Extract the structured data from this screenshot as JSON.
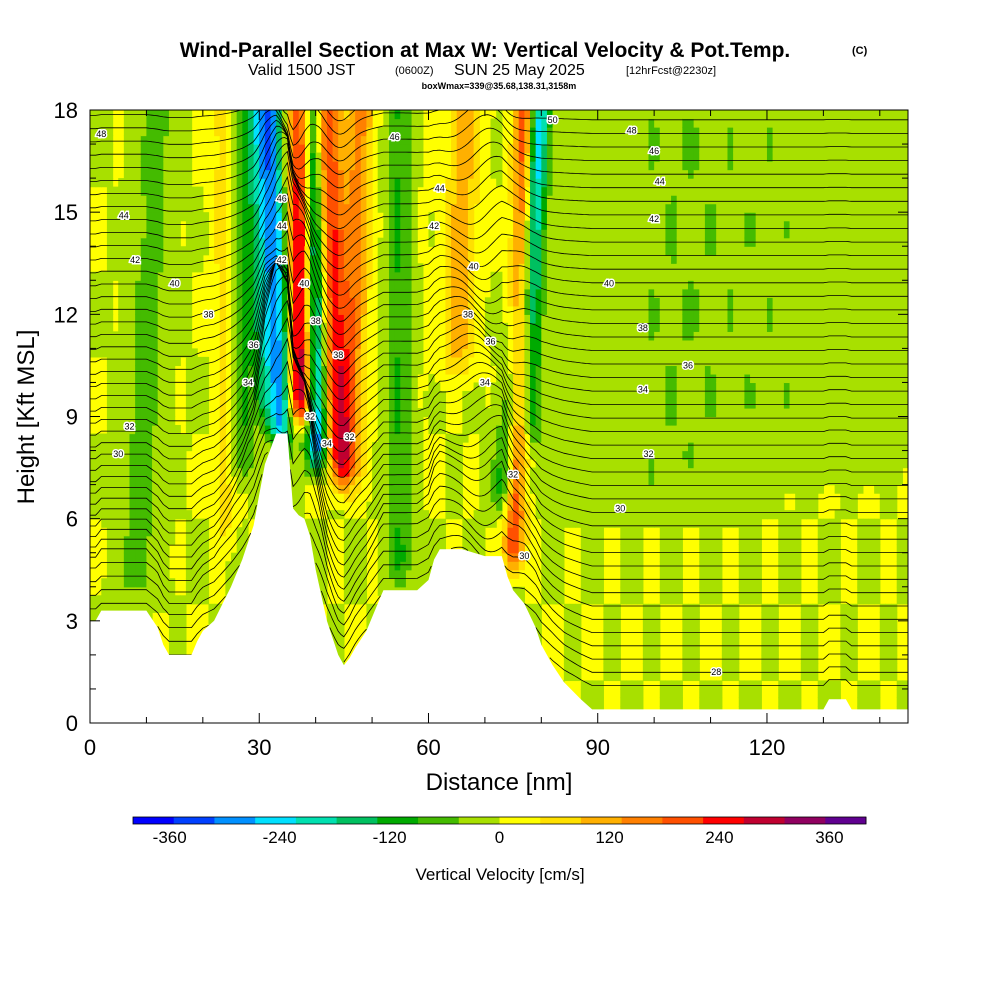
{
  "titles": {
    "main": "Wind-Parallel Section at Max W: Vertical Velocity & Pot.Temp.",
    "copyright": "(C)",
    "valid_a": "Valid 1500 JST",
    "valid_b": "(0600Z)",
    "valid_c": "SUN 25 May 2025",
    "valid_d": "[12hrFcst@2230z]",
    "box": "boxWmax=339@35.68,138.31,3158m"
  },
  "chart_data": {
    "type": "heatmap",
    "xlabel": "Distance [nm]",
    "ylabel": "Height [Kft MSL]",
    "xlim": [
      0,
      145
    ],
    "ylim": [
      0,
      18
    ],
    "x_ticks": [
      0,
      30,
      60,
      90,
      120
    ],
    "y_ticks": [
      0,
      3,
      6,
      9,
      12,
      15,
      18
    ],
    "colorbar": {
      "label": "Vertical Velocity [cm/s]",
      "ticks": [
        -360,
        -240,
        -120,
        0,
        120,
        240,
        360
      ],
      "min": -400,
      "max": 400,
      "colors": [
        "#0000ff",
        "#0040ff",
        "#0090ff",
        "#00e0ff",
        "#00e0b0",
        "#00c060",
        "#00aa00",
        "#44bb00",
        "#a8e000",
        "#ffff00",
        "#ffe000",
        "#ffb000",
        "#ff8000",
        "#ff5000",
        "#ff0000",
        "#c00030",
        "#900060",
        "#600090"
      ]
    },
    "terrain_kft": [
      [
        0,
        3.0
      ],
      [
        1,
        3.0
      ],
      [
        2,
        3.3
      ],
      [
        8,
        3.3
      ],
      [
        10,
        3.3
      ],
      [
        12,
        2.8
      ],
      [
        13,
        2.3
      ],
      [
        14,
        2.0
      ],
      [
        18,
        2.0
      ],
      [
        19,
        2.4
      ],
      [
        20,
        2.7
      ],
      [
        22,
        3.0
      ],
      [
        25,
        4.0
      ],
      [
        27,
        4.8
      ],
      [
        29,
        5.8
      ],
      [
        30,
        6.7
      ],
      [
        31,
        7.6
      ],
      [
        33,
        8.5
      ],
      [
        35,
        8.5
      ],
      [
        36,
        6.3
      ],
      [
        37,
        6.1
      ],
      [
        38,
        6.0
      ],
      [
        39,
        5.5
      ],
      [
        40,
        4.5
      ],
      [
        42,
        3.0
      ],
      [
        44,
        2.0
      ],
      [
        45,
        1.7
      ],
      [
        46,
        1.9
      ],
      [
        47,
        2.2
      ],
      [
        49,
        2.7
      ],
      [
        51,
        3.5
      ],
      [
        52,
        3.9
      ],
      [
        58,
        3.9
      ],
      [
        60,
        4.2
      ],
      [
        61,
        4.8
      ],
      [
        62,
        5.1
      ],
      [
        66,
        5.1
      ],
      [
        70,
        4.9
      ],
      [
        73,
        4.9
      ],
      [
        74,
        4.3
      ],
      [
        75,
        3.9
      ],
      [
        77,
        3.5
      ],
      [
        79,
        2.8
      ],
      [
        80,
        2.3
      ],
      [
        82,
        1.7
      ],
      [
        84,
        1.2
      ],
      [
        87,
        0.7
      ],
      [
        89,
        0.4
      ],
      [
        130,
        0.4
      ],
      [
        131,
        0.7
      ],
      [
        134,
        0.7
      ],
      [
        135,
        0.4
      ],
      [
        145,
        0.4
      ]
    ],
    "updrafts": [
      {
        "x_base": 37.5,
        "x_top": 37.5,
        "y_base": 8.6,
        "width": 2.2,
        "peak": 339
      },
      {
        "x_base": 44.0,
        "x_top": 42.0,
        "y_base": 7.0,
        "width": 2.5,
        "peak": 230
      },
      {
        "x_base": 45.5,
        "x_top": 48.0,
        "y_base": 6.5,
        "width": 2.5,
        "peak": 140
      },
      {
        "x_base": 75.0,
        "x_top": 77.0,
        "y_base": 4.2,
        "width": 1.8,
        "peak": 220
      },
      {
        "x_base": 65.0,
        "x_top": 66.5,
        "y_base": 10.0,
        "width": 2.8,
        "peak": 110
      },
      {
        "x_base": 24.0,
        "x_top": 23.0,
        "y_base": 5.0,
        "width": 1.5,
        "peak": 60
      },
      {
        "x_base": 55.0,
        "x_top": 56.0,
        "y_base": 4.5,
        "width": 3.0,
        "peak": 40
      }
    ],
    "downdrafts": [
      {
        "x_base": 34.0,
        "x_top": 32.0,
        "y_base": 7.8,
        "width": 2.0,
        "peak": -270
      },
      {
        "x_base": 40.5,
        "x_top": 39.0,
        "y_base": 7.2,
        "width": 2.0,
        "peak": -320
      },
      {
        "x_base": 31.0,
        "x_top": 30.0,
        "y_base": 8.6,
        "width": 1.8,
        "peak": -140
      },
      {
        "x_base": 73.0,
        "x_top": 80.0,
        "y_base": 6.0,
        "width": 2.2,
        "peak": -140
      },
      {
        "x_base": 78.5,
        "x_top": 79.5,
        "y_base": 8.0,
        "width": 1.5,
        "peak": -110
      },
      {
        "x_base": 27.0,
        "x_top": 28.0,
        "y_base": 7.0,
        "width": 2.0,
        "peak": -90
      },
      {
        "x_base": 55.0,
        "x_top": 55.0,
        "y_base": 4.0,
        "width": 2.5,
        "peak": -130
      },
      {
        "x_base": 8.0,
        "x_top": 12.0,
        "y_base": 3.3,
        "width": 3.5,
        "peak": -60
      },
      {
        "x_base": 100.0,
        "x_top": 100.0,
        "y_base": 6.0,
        "width": 15.0,
        "peak": -35
      },
      {
        "x_base": 125.0,
        "x_top": 125.0,
        "y_base": 7.0,
        "width": 18.0,
        "peak": -35
      }
    ],
    "theta_contours": {
      "levels_k": [
        28,
        30,
        32,
        34,
        36,
        38,
        40,
        42,
        44,
        46,
        48,
        50
      ],
      "labels": [
        {
          "text": "48",
          "x": 2,
          "y": 17.3
        },
        {
          "text": "46",
          "x": 54,
          "y": 17.2
        },
        {
          "text": "50",
          "x": 82,
          "y": 17.7
        },
        {
          "text": "48",
          "x": 96,
          "y": 17.4
        },
        {
          "text": "46",
          "x": 100,
          "y": 16.8
        },
        {
          "text": "44",
          "x": 101,
          "y": 15.9
        },
        {
          "text": "42",
          "x": 100,
          "y": 14.8
        },
        {
          "text": "44",
          "x": 6,
          "y": 14.9
        },
        {
          "text": "42",
          "x": 8,
          "y": 13.6
        },
        {
          "text": "40",
          "x": 15,
          "y": 12.9
        },
        {
          "text": "38",
          "x": 21,
          "y": 12.0
        },
        {
          "text": "36",
          "x": 29,
          "y": 11.1
        },
        {
          "text": "34",
          "x": 28,
          "y": 10.0
        },
        {
          "text": "32",
          "x": 7,
          "y": 8.7
        },
        {
          "text": "30",
          "x": 5,
          "y": 7.9
        },
        {
          "text": "44",
          "x": 62,
          "y": 15.7
        },
        {
          "text": "42",
          "x": 61,
          "y": 14.6
        },
        {
          "text": "40",
          "x": 68,
          "y": 13.4
        },
        {
          "text": "38",
          "x": 67,
          "y": 12.0
        },
        {
          "text": "36",
          "x": 71,
          "y": 11.2
        },
        {
          "text": "34",
          "x": 70,
          "y": 10.0
        },
        {
          "text": "40",
          "x": 92,
          "y": 12.9
        },
        {
          "text": "38",
          "x": 98,
          "y": 11.6
        },
        {
          "text": "36",
          "x": 106,
          "y": 10.5
        },
        {
          "text": "34",
          "x": 98,
          "y": 9.8
        },
        {
          "text": "32",
          "x": 99,
          "y": 7.9
        },
        {
          "text": "30",
          "x": 94,
          "y": 6.3
        },
        {
          "text": "28",
          "x": 111,
          "y": 1.5
        },
        {
          "text": "32",
          "x": 75,
          "y": 7.3
        },
        {
          "text": "30",
          "x": 77,
          "y": 4.9
        },
        {
          "text": "46",
          "x": 34,
          "y": 15.4
        },
        {
          "text": "44",
          "x": 34,
          "y": 14.6
        },
        {
          "text": "42",
          "x": 34,
          "y": 13.6
        },
        {
          "text": "40",
          "x": 38,
          "y": 12.9
        },
        {
          "text": "38",
          "x": 40,
          "y": 11.8
        },
        {
          "text": "38",
          "x": 44,
          "y": 10.8
        },
        {
          "text": "32",
          "x": 39,
          "y": 9.0
        },
        {
          "text": "34",
          "x": 42,
          "y": 8.2
        },
        {
          "text": "32",
          "x": 46,
          "y": 8.4
        }
      ]
    }
  }
}
